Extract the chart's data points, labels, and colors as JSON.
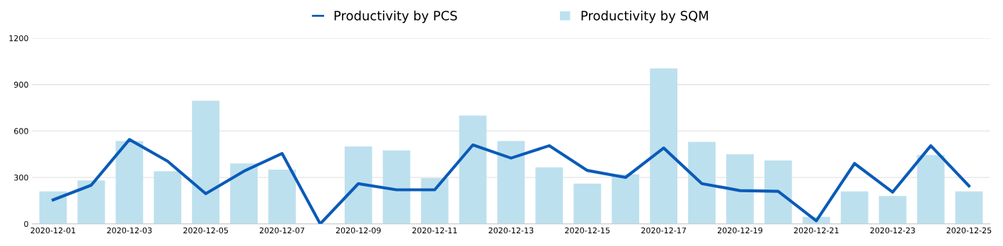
{
  "chart_data": {
    "type": "bar",
    "categories": [
      "2020-12-01",
      null,
      "2020-12-03",
      null,
      "2020-12-05",
      null,
      "2020-12-07",
      null,
      "2020-12-09",
      null,
      "2020-12-11",
      null,
      "2020-12-13",
      null,
      "2020-12-15",
      null,
      "2020-12-17",
      null,
      "2020-12-19",
      null,
      "2020-12-21",
      null,
      "2020-12-23",
      null,
      "2020-12-25"
    ],
    "series": [
      {
        "name": "Productivity by PCS",
        "type": "line",
        "color": "#0a5bb8",
        "values": [
          155,
          250,
          545,
          405,
          195,
          340,
          455,
          0,
          260,
          220,
          220,
          510,
          425,
          505,
          345,
          300,
          490,
          260,
          215,
          210,
          20,
          390,
          205,
          505,
          245
        ]
      },
      {
        "name": "Productivity by SQM",
        "color": "#bde0ee",
        "values": [
          210,
          280,
          535,
          340,
          795,
          390,
          350,
          0,
          500,
          475,
          295,
          700,
          535,
          365,
          260,
          320,
          1005,
          530,
          450,
          410,
          45,
          210,
          180,
          445,
          210
        ]
      }
    ],
    "ylim": [
      0,
      1200
    ],
    "yticks": [
      0,
      300,
      600,
      900,
      1200
    ],
    "grid": "y",
    "legend": "top"
  }
}
